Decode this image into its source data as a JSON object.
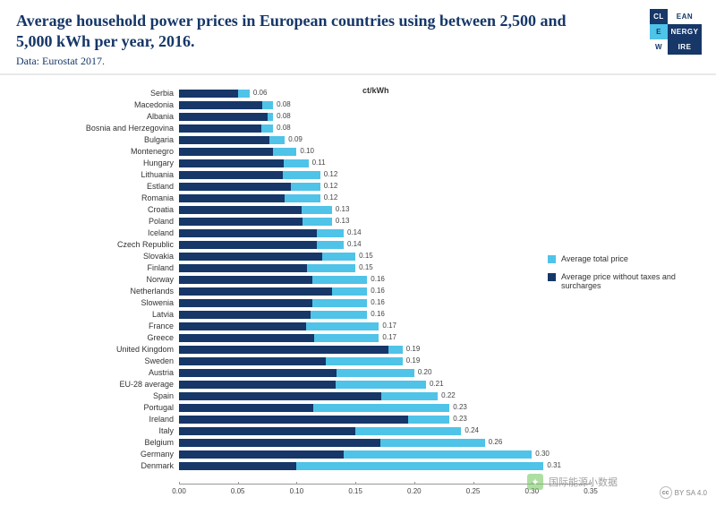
{
  "header": {
    "title": "Average household power prices in European countries using between 2,500 and 5,000 kWh per year, 2016.",
    "subtitle": "Data: Eurostat 2017."
  },
  "logo": {
    "cells": [
      {
        "t": "CL",
        "bg": "#163768",
        "fg": "#ffffff"
      },
      {
        "t": "EAN",
        "bg": "#ffffff",
        "fg": "#163768"
      },
      {
        "t": "E",
        "bg": "#4fc3e8",
        "fg": "#163768"
      },
      {
        "t": "NERGY",
        "bg": "#163768",
        "fg": "#ffffff"
      },
      {
        "t": "W",
        "bg": "#ffffff",
        "fg": "#163768"
      },
      {
        "t": "IRE",
        "bg": "#163768",
        "fg": "#ffffff"
      }
    ]
  },
  "chart": {
    "type": "bar",
    "unit_label": "ct/kWh",
    "xmax": 0.35,
    "xtick_step": 0.05,
    "xticks": [
      "0.00",
      "0.05",
      "0.10",
      "0.15",
      "0.20",
      "0.25",
      "0.30",
      "0.35"
    ],
    "colors": {
      "total": "#4fc3e8",
      "without": "#163768",
      "axis": "#999999",
      "text": "#333333",
      "background": "#ffffff"
    },
    "legend": [
      {
        "label": "Average total price",
        "color": "#4fc3e8"
      },
      {
        "label": "Average price without taxes and surcharges",
        "color": "#163768"
      }
    ],
    "rows": [
      {
        "name": "Serbia",
        "total": 0.06,
        "without": 0.05,
        "label": "0.06"
      },
      {
        "name": "Macedonia",
        "total": 0.08,
        "without": 0.071,
        "label": "0.08"
      },
      {
        "name": "Albania",
        "total": 0.08,
        "without": 0.075,
        "label": "0.08"
      },
      {
        "name": "Bosnia and Herzegovina",
        "total": 0.08,
        "without": 0.07,
        "label": "0.08"
      },
      {
        "name": "Bulgaria",
        "total": 0.09,
        "without": 0.077,
        "label": "0.09"
      },
      {
        "name": "Montenegro",
        "total": 0.1,
        "without": 0.08,
        "label": "0.10"
      },
      {
        "name": "Hungary",
        "total": 0.11,
        "without": 0.089,
        "label": "0.11"
      },
      {
        "name": "Lithuania",
        "total": 0.12,
        "without": 0.088,
        "label": "0.12"
      },
      {
        "name": "Estland",
        "total": 0.12,
        "without": 0.095,
        "label": "0.12"
      },
      {
        "name": "Romania",
        "total": 0.12,
        "without": 0.09,
        "label": "0.12"
      },
      {
        "name": "Croatia",
        "total": 0.13,
        "without": 0.104,
        "label": "0.13"
      },
      {
        "name": "Poland",
        "total": 0.13,
        "without": 0.105,
        "label": "0.13"
      },
      {
        "name": "Iceland",
        "total": 0.14,
        "without": 0.117,
        "label": "0.14"
      },
      {
        "name": "Czech Republic",
        "total": 0.14,
        "without": 0.117,
        "label": "0.14"
      },
      {
        "name": "Slovakia",
        "total": 0.15,
        "without": 0.122,
        "label": "0.15"
      },
      {
        "name": "Finland",
        "total": 0.15,
        "without": 0.109,
        "label": "0.15"
      },
      {
        "name": "Norway",
        "total": 0.16,
        "without": 0.113,
        "label": "0.16"
      },
      {
        "name": "Netherlands",
        "total": 0.16,
        "without": 0.13,
        "label": "0.16"
      },
      {
        "name": "Slowenia",
        "total": 0.16,
        "without": 0.113,
        "label": "0.16"
      },
      {
        "name": "Latvia",
        "total": 0.16,
        "without": 0.112,
        "label": "0.16"
      },
      {
        "name": "France",
        "total": 0.17,
        "without": 0.108,
        "label": "0.17"
      },
      {
        "name": "Greece",
        "total": 0.17,
        "without": 0.115,
        "label": "0.17"
      },
      {
        "name": "United Kingdom",
        "total": 0.19,
        "without": 0.178,
        "label": "0.19"
      },
      {
        "name": "Sweden",
        "total": 0.19,
        "without": 0.125,
        "label": "0.19"
      },
      {
        "name": "Austria",
        "total": 0.2,
        "without": 0.134,
        "label": "0.20"
      },
      {
        "name": "EU-28 average",
        "total": 0.21,
        "without": 0.133,
        "label": "0.21"
      },
      {
        "name": "Spain",
        "total": 0.22,
        "without": 0.172,
        "label": "0.22"
      },
      {
        "name": "Portugal",
        "total": 0.23,
        "without": 0.114,
        "label": "0.23"
      },
      {
        "name": "Ireland",
        "total": 0.23,
        "without": 0.195,
        "label": "0.23"
      },
      {
        "name": "Italy",
        "total": 0.24,
        "without": 0.15,
        "label": "0.24"
      },
      {
        "name": "Belgium",
        "total": 0.26,
        "without": 0.171,
        "label": "0.26"
      },
      {
        "name": "Germany",
        "total": 0.3,
        "without": 0.14,
        "label": "0.30"
      },
      {
        "name": "Denmark",
        "total": 0.31,
        "without": 0.1,
        "label": "0.31"
      }
    ]
  },
  "watermark": {
    "text": "国际能源小数据"
  },
  "license": {
    "text": "BY SA 4.0"
  }
}
